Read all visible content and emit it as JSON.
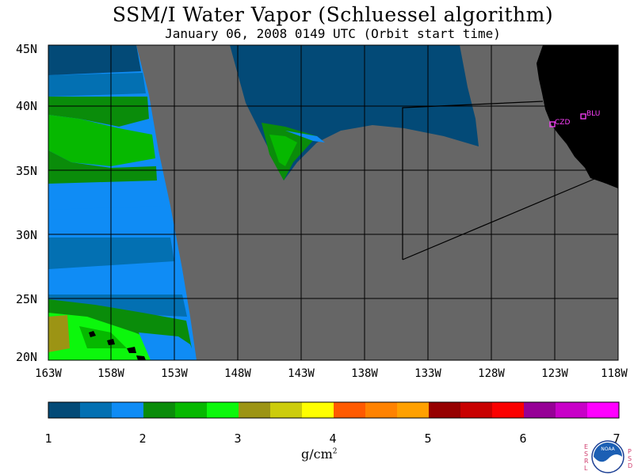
{
  "title": "SSM/I Water Vapor (Schluessel algorithm)",
  "subtitle": "January 06, 2008  0149 UTC  (Orbit start time)",
  "lat_labels": [
    "45N",
    "40N",
    "35N",
    "30N",
    "25N",
    "20N"
  ],
  "lon_labels": [
    "163W",
    "158W",
    "153W",
    "148W",
    "143W",
    "138W",
    "133W",
    "128W",
    "123W",
    "118W"
  ],
  "stations": [
    {
      "id": "CZD"
    },
    {
      "id": "BLU"
    }
  ],
  "colorbar": {
    "ticks": [
      "1",
      "2",
      "3",
      "4",
      "5",
      "6",
      "7"
    ],
    "units": "g/cm",
    "units_exp": "2",
    "colors": [
      "#034a77",
      "#0370b2",
      "#0f8cf5",
      "#0a8c0a",
      "#06b800",
      "#0cf70c",
      "#9c9414",
      "#cccc0c",
      "#ffff00",
      "#ff5a00",
      "#ff8200",
      "#ffa000",
      "#960000",
      "#c80000",
      "#fa0000",
      "#960096",
      "#c800c8",
      "#ff00ff"
    ]
  },
  "map_colors": {
    "nodata": "#666666",
    "land": "#000000",
    "station": "#ff40ff"
  },
  "logo": {
    "text": "NOAA",
    "left_letters": [
      "E",
      "S",
      "R",
      "L"
    ],
    "right_letters": [
      "P",
      "S",
      "D"
    ]
  }
}
